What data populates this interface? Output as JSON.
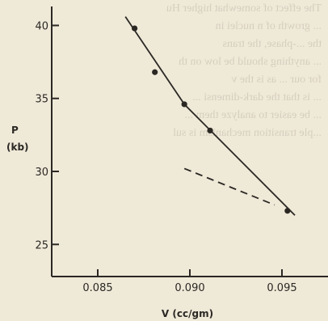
{
  "chart_data": {
    "type": "scatter",
    "title": "",
    "xlabel": "V (cc/gm)",
    "ylabel_top": "P",
    "ylabel_bottom": "(kb)",
    "xlim": [
      0.0825,
      0.0975
    ],
    "ylim": [
      22.8,
      41.3
    ],
    "xticks": [
      0.085,
      0.09,
      0.095
    ],
    "xtick_labels": [
      "0.085",
      "0.090",
      "0.095"
    ],
    "yticks": [
      25,
      30,
      35,
      40
    ],
    "ytick_labels": [
      "25",
      "30",
      "35",
      "40"
    ],
    "grid": false,
    "series": [
      {
        "style": "markers",
        "x": [
          0.087,
          0.0881,
          0.0897,
          0.0911,
          0.0953
        ],
        "y": [
          39.8,
          36.8,
          34.6,
          32.8,
          27.3
        ]
      },
      {
        "style": "solid-line",
        "x": [
          0.0865,
          0.0897,
          0.0957
        ],
        "y": [
          40.6,
          34.6,
          27.0
        ]
      },
      {
        "style": "dashed-line",
        "x": [
          0.0897,
          0.0946
        ],
        "y": [
          30.2,
          27.7
        ]
      }
    ]
  },
  "background_text": [
    "The effect of somewhat higher Hu",
    "  ... growth of n nuclei in",
    "",
    "    the ...-phase, the trans",
    "  ... anything should be low on th",
    "   for our ... as is the v",
    "  ... is that the dark-dimensi ...",
    "  ... be easier to analyze them ...",
    "  ...ple transition mechanism is sul"
  ]
}
